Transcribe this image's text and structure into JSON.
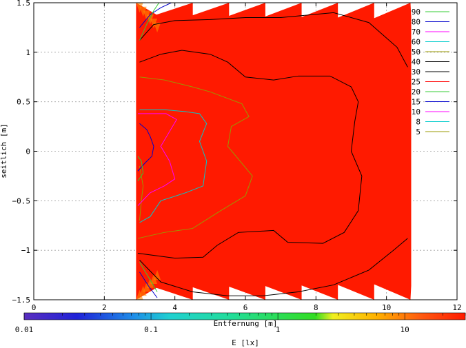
{
  "chart_data": {
    "type": "contour",
    "xlabel": "Entfernung [m]",
    "ylabel": "seitlich [m]",
    "xlim": [
      0,
      12
    ],
    "ylim": [
      -1.5,
      1.5
    ],
    "x_ticks": [
      "0",
      "2",
      "4",
      "6",
      "8",
      "10",
      "12"
    ],
    "y_ticks": [
      "1.5",
      "1",
      "0.5",
      "0",
      "-0.5",
      "-1",
      "-1.5"
    ],
    "grid": true,
    "legend_position": "top-right",
    "contour_levels": [
      {
        "label": "90",
        "color": "#33cc33"
      },
      {
        "label": "80",
        "color": "#0000cc"
      },
      {
        "label": "70",
        "color": "#ff00ff"
      },
      {
        "label": "60",
        "color": "#00cccc"
      },
      {
        "label": "50",
        "color": "#999900"
      },
      {
        "label": "40",
        "color": "#000000"
      },
      {
        "label": "30",
        "color": "#000000"
      },
      {
        "label": "25",
        "color": "#ff0000"
      },
      {
        "label": "20",
        "color": "#33cc33"
      },
      {
        "label": "15",
        "color": "#0000cc"
      },
      {
        "label": "10",
        "color": "#ff00ff"
      },
      {
        "label": "8",
        "color": "#00cccc"
      },
      {
        "label": "5",
        "color": "#999900"
      }
    ],
    "colorbar": {
      "label": "E [lx]",
      "scale": "log",
      "ticks": [
        "0.01",
        "0.1",
        "1",
        "10"
      ],
      "range": [
        0.01,
        30
      ]
    },
    "field_region": {
      "x_min": 2.9,
      "x_max": 10.7,
      "fill_color": "#ff1a00"
    },
    "contours": [
      {
        "level": "5",
        "color": "#999900",
        "points": [
          [
            3.0,
            -0.15
          ],
          [
            3.05,
            -0.25
          ],
          [
            3.1,
            -0.35
          ],
          [
            3.05,
            -0.5
          ],
          [
            3.0,
            -0.7
          ]
        ]
      },
      {
        "level": "10",
        "color": "#ff00ff",
        "points": [
          [
            2.95,
            -0.55
          ],
          [
            3.3,
            -0.42
          ],
          [
            3.7,
            -0.35
          ],
          [
            4.0,
            -0.28
          ],
          [
            3.85,
            -0.1
          ],
          [
            3.6,
            0.05
          ],
          [
            3.85,
            0.2
          ],
          [
            4.05,
            0.32
          ],
          [
            3.75,
            0.38
          ],
          [
            3.3,
            0.38
          ],
          [
            2.95,
            0.38
          ]
        ]
      },
      {
        "level": "15",
        "color": "#0000cc",
        "points": [
          [
            2.95,
            -0.2
          ],
          [
            3.15,
            -0.12
          ],
          [
            3.35,
            -0.05
          ],
          [
            3.4,
            0.05
          ],
          [
            3.3,
            0.15
          ],
          [
            3.2,
            0.22
          ],
          [
            3.0,
            0.28
          ]
        ]
      },
      {
        "level": "20",
        "color": "#33cc33",
        "points": [
          [
            2.95,
            -0.3
          ],
          [
            3.1,
            -0.22
          ],
          [
            3.05,
            -0.1
          ],
          [
            2.95,
            -0.05
          ]
        ]
      },
      {
        "level": "8",
        "color": "#00cccc",
        "points": [
          [
            3.0,
            -0.72
          ],
          [
            3.3,
            -0.66
          ],
          [
            3.6,
            -0.5
          ],
          [
            4.3,
            -0.42
          ],
          [
            4.8,
            -0.35
          ],
          [
            4.9,
            -0.1
          ],
          [
            4.7,
            0.1
          ],
          [
            4.9,
            0.28
          ],
          [
            4.7,
            0.38
          ],
          [
            4.3,
            0.4
          ],
          [
            3.7,
            0.42
          ],
          [
            3.0,
            0.42
          ]
        ]
      },
      {
        "level": "50",
        "color": "#999900",
        "points": [
          [
            2.95,
            -0.88
          ],
          [
            3.7,
            -0.82
          ],
          [
            4.5,
            -0.78
          ],
          [
            5.3,
            -0.6
          ],
          [
            6.0,
            -0.45
          ],
          [
            6.2,
            -0.25
          ],
          [
            5.5,
            0.05
          ],
          [
            5.6,
            0.25
          ],
          [
            6.1,
            0.35
          ],
          [
            5.9,
            0.48
          ],
          [
            5.0,
            0.6
          ],
          [
            4.5,
            0.65
          ],
          [
            3.7,
            0.72
          ],
          [
            3.0,
            0.75
          ]
        ]
      },
      {
        "level": "40",
        "color": "#000000",
        "points": [
          [
            2.95,
            -1.03
          ],
          [
            4.0,
            -1.08
          ],
          [
            4.8,
            -1.07
          ],
          [
            5.2,
            -0.95
          ],
          [
            5.8,
            -0.82
          ],
          [
            6.8,
            -0.8
          ],
          [
            7.2,
            -0.92
          ],
          [
            8.2,
            -0.93
          ],
          [
            8.8,
            -0.82
          ],
          [
            9.2,
            -0.6
          ],
          [
            9.3,
            -0.25
          ],
          [
            9.0,
            0.0
          ],
          [
            9.1,
            0.3
          ],
          [
            9.2,
            0.5
          ],
          [
            9.0,
            0.65
          ],
          [
            8.4,
            0.76
          ],
          [
            7.5,
            0.76
          ],
          [
            6.8,
            0.72
          ],
          [
            6.0,
            0.75
          ],
          [
            5.5,
            0.9
          ],
          [
            5.0,
            0.98
          ],
          [
            4.2,
            1.02
          ],
          [
            3.6,
            0.98
          ],
          [
            3.0,
            0.9
          ]
        ]
      },
      {
        "level": "30",
        "color": "#000000",
        "points": [
          [
            3.0,
            1.12
          ],
          [
            3.4,
            1.28
          ],
          [
            4.0,
            1.32
          ],
          [
            5.0,
            1.33
          ],
          [
            6.0,
            1.35
          ],
          [
            7.0,
            1.35
          ],
          [
            8.5,
            1.4
          ],
          [
            9.5,
            1.3
          ],
          [
            10.3,
            1.05
          ],
          [
            10.6,
            0.85
          ]
        ]
      },
      {
        "level": "30",
        "color": "#000000",
        "points": [
          [
            3.0,
            -1.1
          ],
          [
            3.6,
            -1.32
          ],
          [
            4.5,
            -1.42
          ],
          [
            5.5,
            -1.46
          ],
          [
            6.5,
            -1.46
          ],
          [
            7.5,
            -1.42
          ],
          [
            8.5,
            -1.35
          ],
          [
            9.5,
            -1.2
          ],
          [
            10.2,
            -1.0
          ],
          [
            10.6,
            -0.88
          ]
        ]
      },
      {
        "level": "80",
        "color": "#0000cc",
        "points": [
          [
            3.0,
            1.25
          ],
          [
            3.3,
            1.38
          ],
          [
            3.6,
            1.45
          ],
          [
            3.9,
            1.5
          ]
        ]
      },
      {
        "level": "90",
        "color": "#33cc33",
        "points": [
          [
            3.0,
            1.12
          ],
          [
            3.2,
            1.28
          ],
          [
            3.4,
            1.42
          ],
          [
            3.55,
            1.5
          ]
        ]
      },
      {
        "level": "80",
        "color": "#0000cc",
        "points": [
          [
            3.0,
            -1.22
          ],
          [
            3.25,
            -1.36
          ],
          [
            3.5,
            -1.48
          ]
        ]
      },
      {
        "level": "90",
        "color": "#33cc33",
        "points": [
          [
            3.0,
            -1.12
          ],
          [
            3.3,
            -1.3
          ],
          [
            3.5,
            -1.42
          ]
        ]
      }
    ]
  }
}
